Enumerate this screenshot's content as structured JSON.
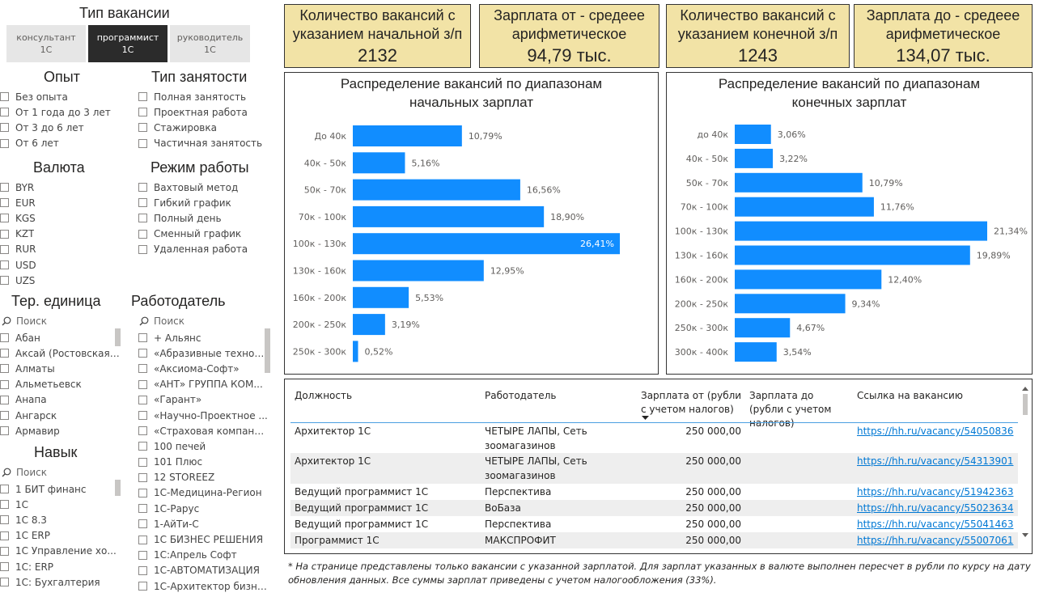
{
  "filters": {
    "vacancy_type": {
      "title": "Тип вакансии",
      "tiles": [
        {
          "line1": "консультант",
          "line2": "1С",
          "selected": false
        },
        {
          "line1": "программист",
          "line2": "1С",
          "selected": true
        },
        {
          "line1": "руководитель",
          "line2": "1С",
          "selected": false
        }
      ]
    },
    "experience": {
      "title": "Опыт",
      "items": [
        "Без опыта",
        "От 1 года до 3 лет",
        "От 3 до 6 лет",
        "От 6 лет"
      ]
    },
    "employment": {
      "title": "Тип занятости",
      "items": [
        "Полная занятость",
        "Проектная работа",
        "Стажировка",
        "Частичная занятость"
      ]
    },
    "currency": {
      "title": "Валюта",
      "items": [
        "BYR",
        "EUR",
        "KGS",
        "KZT",
        "RUR",
        "USD",
        "UZS"
      ]
    },
    "schedule": {
      "title": "Режим работы",
      "items": [
        "Вахтовый метод",
        "Гибкий график",
        "Полный день",
        "Сменный график",
        "Удаленная работа"
      ]
    },
    "territory": {
      "title": "Тер. единица",
      "search_placeholder": "Поиск",
      "items": [
        "Абан",
        "Аксай (Ростовская ...",
        "Алматы",
        "Альметьевск",
        "Анапа",
        "Ангарск",
        "Армавир"
      ]
    },
    "employer": {
      "title": "Работодатель",
      "search_placeholder": "Поиск",
      "items": [
        "+ Альянс",
        "«Абразивные технол...",
        "«Аксиома-Софт»",
        "«АНТ» ГРУППА КОМ...",
        "«Гарант»",
        "«Научно-Проектное ...",
        "«Страховая компани...",
        "100 печей",
        "101 Плюс",
        "12 STOREEZ",
        "1С-Медицина-Регион",
        "1С-Рарус",
        "1-АйТи-С",
        "1С БИЗНЕС РЕШЕНИЯ",
        "1С:Апрель Софт",
        "1С-АВТОМАТИЗАЦИЯ",
        "1С-Архитектор бизне..."
      ]
    },
    "skill": {
      "title": "Навык",
      "search_placeholder": "Поиск",
      "items": [
        "1 БИТ финанс",
        "1С",
        "1С 8.3",
        "1С ERP",
        "1С Управление хо...",
        "1С: ERP",
        "1С: Бухгалтерия"
      ]
    }
  },
  "cards": [
    {
      "label_line1": "Количество вакансий с",
      "label_line2": "указанием начальной з/п",
      "value": "2132"
    },
    {
      "label_line1": "Зарплата от - средеее",
      "label_line2": "арифметическое",
      "value": "94,79 тыс."
    },
    {
      "label_line1": "Количество вакансий с",
      "label_line2": "указанием конечной з/п",
      "value": "1243"
    },
    {
      "label_line1": "Зарплата до - средеее",
      "label_line2": "арифметическое",
      "value": "134,07 тыс."
    }
  ],
  "chart_data": [
    {
      "type": "bar",
      "orientation": "horizontal",
      "title_line1": "Распределение вакансий по диапазонам",
      "title_line2": "начальных зарплат",
      "categories": [
        "До 40к",
        "40к - 50к",
        "50к - 70к",
        "70к - 100к",
        "100к - 130к",
        "130к - 160к",
        "160к - 200к",
        "200к - 250к",
        "250к - 300к"
      ],
      "values": [
        10.79,
        5.16,
        16.56,
        18.9,
        26.41,
        12.95,
        5.53,
        3.19,
        0.52
      ],
      "labels": [
        "10,79%",
        "5,16%",
        "16,56%",
        "18,90%",
        "26,41%",
        "12,95%",
        "5,53%",
        "3,19%",
        "0,52%"
      ],
      "color": "#118dff"
    },
    {
      "type": "bar",
      "orientation": "horizontal",
      "title_line1": "Распределение вакансий по диапазонам",
      "title_line2": "конечных зарплат",
      "categories": [
        "до 40к",
        "40к - 50к",
        "50к - 70к",
        "70к - 100к",
        "100к - 130к",
        "130к - 160к",
        "160к - 200к",
        "200к - 250к",
        "250к - 300к",
        "300к - 400к"
      ],
      "values": [
        3.06,
        3.22,
        10.79,
        11.76,
        21.34,
        19.89,
        12.4,
        9.34,
        4.67,
        3.54
      ],
      "labels": [
        "3,06%",
        "3,22%",
        "10,79%",
        "11,76%",
        "21,34%",
        "19,89%",
        "12,40%",
        "9,34%",
        "4,67%",
        "3,54%"
      ],
      "color": "#118dff"
    }
  ],
  "table": {
    "headers": {
      "position": "Должность",
      "employer": "Работодатель",
      "salary_from": "Зарплата от (рубли с учетом налогов)",
      "salary_to": "Зарплата до (рубли с учетом налогов)",
      "link": "Ссылка на вакансию"
    },
    "rows": [
      {
        "position": "Архитектор 1С",
        "employer": "ЧЕТЫРЕ ЛАПЫ, Сеть зоомагазинов",
        "salary_from": "250 000,00",
        "link": "https://hh.ru/vacancy/54050836"
      },
      {
        "position": "Архитектор 1С",
        "employer": "ЧЕТЫРЕ ЛАПЫ, Сеть зоомагазинов",
        "salary_from": "250 000,00",
        "link": "https://hh.ru/vacancy/54313901"
      },
      {
        "position": "Ведущий программист 1С",
        "employer": "Перспектива",
        "salary_from": "250 000,00",
        "link": "https://hh.ru/vacancy/51942363"
      },
      {
        "position": "Ведущий программист 1С",
        "employer": "ВоБаза",
        "salary_from": "250 000,00",
        "link": "https://hh.ru/vacancy/55023634"
      },
      {
        "position": "Ведущий программист 1С",
        "employer": "Перспектива",
        "salary_from": "250 000,00",
        "link": "https://hh.ru/vacancy/55041463"
      },
      {
        "position": "Программист 1С",
        "employer": "МАКСПРОФИТ",
        "salary_from": "250 000,00",
        "link": "https://hh.ru/vacancy/55007061"
      }
    ]
  },
  "footnote": "* На странице представлены только вакансии с указанной зарплатой. Для зарплат указанных в валюте выполнен пересчет в рубли по курсу на дату обновления данных. Все суммы зарплат приведены с учетом налогообложения (33%)."
}
